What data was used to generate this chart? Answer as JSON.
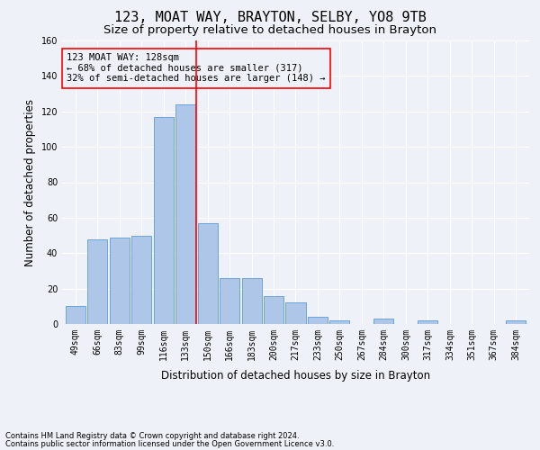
{
  "title": "123, MOAT WAY, BRAYTON, SELBY, YO8 9TB",
  "subtitle": "Size of property relative to detached houses in Brayton",
  "xlabel": "Distribution of detached houses by size in Brayton",
  "ylabel": "Number of detached properties",
  "categories": [
    "49sqm",
    "66sqm",
    "83sqm",
    "99sqm",
    "116sqm",
    "133sqm",
    "150sqm",
    "166sqm",
    "183sqm",
    "200sqm",
    "217sqm",
    "233sqm",
    "250sqm",
    "267sqm",
    "284sqm",
    "300sqm",
    "317sqm",
    "334sqm",
    "351sqm",
    "367sqm",
    "384sqm"
  ],
  "values": [
    10,
    48,
    49,
    50,
    117,
    124,
    57,
    26,
    26,
    16,
    12,
    4,
    2,
    0,
    3,
    0,
    2,
    0,
    0,
    0,
    2
  ],
  "bar_color": "#aec6e8",
  "bar_edge_color": "#5b9bd5",
  "vline_x": 5.5,
  "vline_color": "red",
  "ylim": [
    0,
    160
  ],
  "yticks": [
    0,
    20,
    40,
    60,
    80,
    100,
    120,
    140,
    160
  ],
  "annotation_title": "123 MOAT WAY: 128sqm",
  "annotation_line1": "← 68% of detached houses are smaller (317)",
  "annotation_line2": "32% of semi-detached houses are larger (148) →",
  "annotation_box_color": "red",
  "footer_line1": "Contains HM Land Registry data © Crown copyright and database right 2024.",
  "footer_line2": "Contains public sector information licensed under the Open Government Licence v3.0.",
  "background_color": "#eef2f8",
  "grid_color": "#ffffff",
  "title_fontsize": 11,
  "subtitle_fontsize": 9.5,
  "axis_label_fontsize": 8.5,
  "tick_fontsize": 7,
  "footer_fontsize": 6,
  "annotation_fontsize": 7.5
}
